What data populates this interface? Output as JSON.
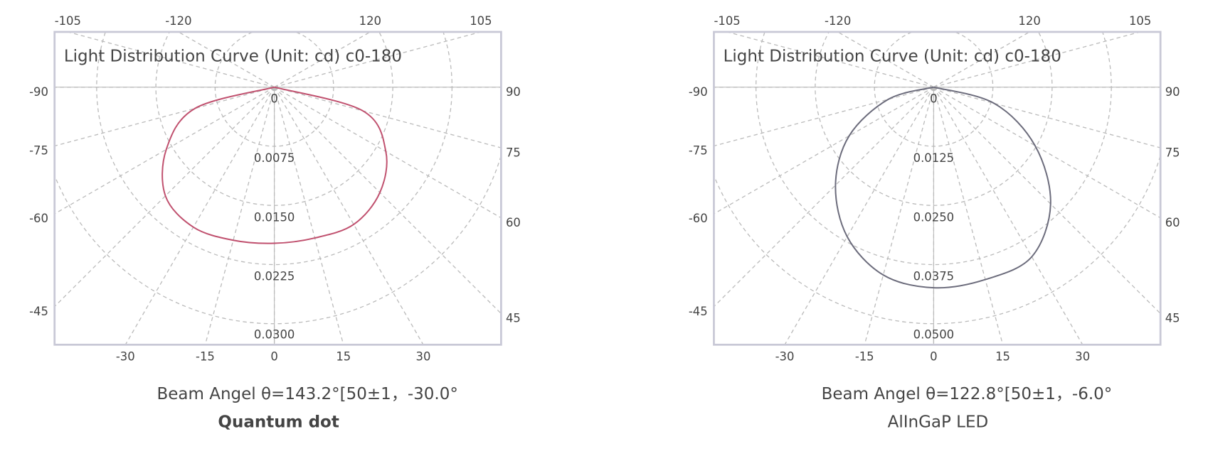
{
  "chart_data": [
    {
      "type": "polar",
      "title": "Light Distribution Curve (Unit: cd)  c0-180",
      "subtitle": "Beam Angel θ=143.2°[50±1，-30.0°",
      "caption": "Quantum dot",
      "angles": [
        -90,
        -75,
        -60,
        -45,
        -30,
        -15,
        0,
        15,
        30,
        45,
        60,
        75,
        90
      ],
      "values": [
        0,
        0.0104,
        0.0158,
        0.0195,
        0.0205,
        0.0201,
        0.0198,
        0.0198,
        0.0201,
        0.0189,
        0.0163,
        0.0116,
        0
      ],
      "color": "#c0506e",
      "rlim": [
        0,
        0.03
      ],
      "rticks": [
        0,
        0.0075,
        {
          "value": 0.015,
          "label": "0.0150"
        },
        0.0225,
        {
          "value": 0.03,
          "label": "0.0300"
        }
      ],
      "angle_ticks": [
        -90,
        -75,
        -60,
        -45,
        -30,
        -15,
        0,
        15,
        30,
        45,
        60,
        75,
        90,
        105,
        120,
        -105,
        -120
      ]
    },
    {
      "type": "polar",
      "title": "Light Distribution Curve (Unit: cd)  c0-180",
      "subtitle": "Beam Angel θ=122.8°[50±1，-6.0°",
      "caption": "AlInGaP LED",
      "angles": [
        -90,
        -75,
        -60,
        -45,
        -30,
        -15,
        0,
        15,
        30,
        45,
        60,
        75,
        90
      ],
      "values": [
        0,
        0.0099,
        0.0206,
        0.0293,
        0.0365,
        0.0411,
        0.0424,
        0.0421,
        0.0414,
        0.0349,
        0.0247,
        0.0132,
        0
      ],
      "color": "#6b6b7b",
      "rlim": [
        0,
        0.05
      ],
      "rticks": [
        0,
        0.0125,
        {
          "value": 0.025,
          "label": "0.0250"
        },
        0.0375,
        {
          "value": 0.05,
          "label": "0.0500"
        }
      ],
      "angle_ticks": [
        -90,
        -75,
        -60,
        -45,
        -30,
        -15,
        0,
        15,
        30,
        45,
        60,
        75,
        90,
        105,
        120,
        -105,
        -120
      ]
    }
  ]
}
